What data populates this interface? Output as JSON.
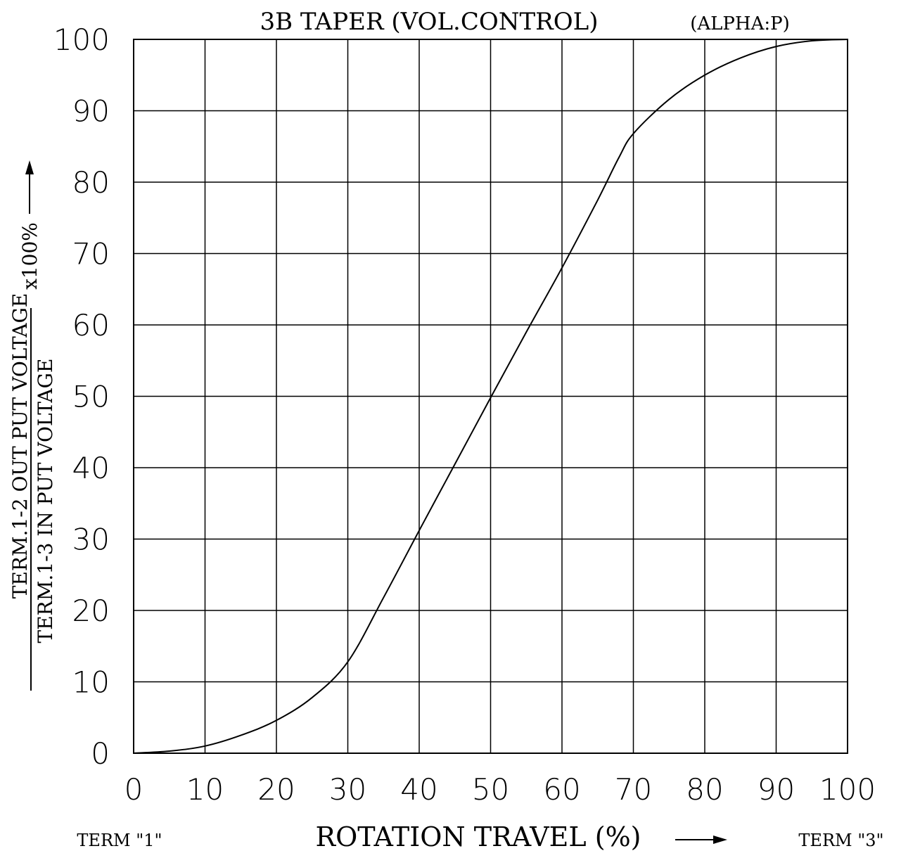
{
  "chart_data": {
    "type": "line",
    "title": "3B TAPER (VOL.CONTROL)",
    "subtitle": "(ALPHA:P)",
    "xlabel": "ROTATION TRAVEL (%)",
    "ylabel_numerator": "TERM.1-2 OUT PUT VOLTAGE",
    "ylabel_denominator": "TERM.1-3 IN PUT VOLTAGE",
    "ylabel_multiplier": "x100%",
    "x_start_label": "TERM \"1\"",
    "x_end_label": "TERM \"3\"",
    "xlim": [
      0,
      100
    ],
    "ylim": [
      0,
      100
    ],
    "xticks": [
      "0",
      "10",
      "20",
      "30",
      "40",
      "50",
      "60",
      "70",
      "80",
      "90",
      "100"
    ],
    "yticks": [
      "0",
      "10",
      "20",
      "30",
      "40",
      "50",
      "60",
      "70",
      "80",
      "90",
      "100"
    ],
    "grid": true,
    "x": [
      0,
      5,
      10,
      15,
      20,
      25,
      30,
      35,
      40,
      45,
      50,
      55,
      60,
      65,
      68,
      70,
      75,
      80,
      85,
      90,
      95,
      100
    ],
    "y": [
      0,
      0.3,
      1,
      2.5,
      4.6,
      7.8,
      12.8,
      21.8,
      31.2,
      40.5,
      49.8,
      59,
      68,
      77.5,
      83.5,
      86.8,
      91.6,
      95,
      97.4,
      99,
      99.8,
      100
    ]
  }
}
